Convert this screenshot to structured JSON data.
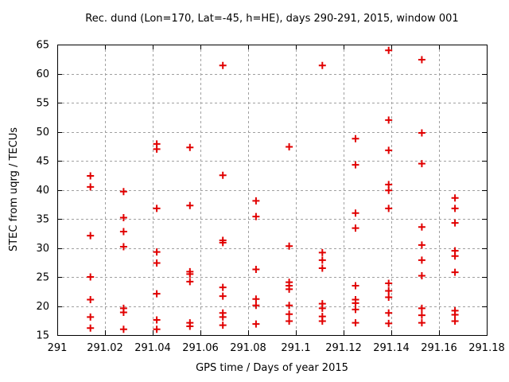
{
  "chart_data": {
    "type": "scatter",
    "title": "Rec. dund (Lon=170, Lat=-45, h=HE), days 290-291, 2015, window 001",
    "xlabel": "GPS time / Days of year 2015",
    "ylabel": "STEC from uqrg / TECUs",
    "xlim": [
      291.0,
      291.18
    ],
    "ylim": [
      15,
      65
    ],
    "grid": true,
    "legend": "none",
    "marker": {
      "shape": "plus",
      "color": "#e10000",
      "size": 9,
      "stroke_width": 2
    },
    "axis_color": "#000000",
    "grid_color": "#a0a0a0",
    "xticks": {
      "values": [
        291.0,
        291.02,
        291.04,
        291.06,
        291.08,
        291.1,
        291.12,
        291.14,
        291.16,
        291.18
      ],
      "labels": [
        "291",
        "291.02",
        "291.04",
        "291.06",
        "291.08",
        "291.1",
        "291.12",
        "291.14",
        "291.16",
        "291.18"
      ]
    },
    "yticks": {
      "values": [
        15,
        20,
        25,
        30,
        35,
        40,
        45,
        50,
        55,
        60,
        65
      ],
      "labels": [
        "15",
        "20",
        "25",
        "30",
        "35",
        "40",
        "45",
        "50",
        "55",
        "60",
        "65"
      ]
    },
    "series": [
      {
        "name": "STEC",
        "points": [
          [
            291.0139,
            42.4
          ],
          [
            291.0139,
            40.5
          ],
          [
            291.0139,
            32.1
          ],
          [
            291.0139,
            25.0
          ],
          [
            291.0139,
            21.1
          ],
          [
            291.0139,
            18.1
          ],
          [
            291.0139,
            16.2
          ],
          [
            291.0278,
            39.7
          ],
          [
            291.0278,
            35.2
          ],
          [
            291.0278,
            32.8
          ],
          [
            291.0278,
            30.2
          ],
          [
            291.0278,
            19.6
          ],
          [
            291.0278,
            18.9
          ],
          [
            291.0278,
            16.0
          ],
          [
            291.0417,
            47.9
          ],
          [
            291.0417,
            47.0
          ],
          [
            291.0417,
            36.8
          ],
          [
            291.0417,
            29.3
          ],
          [
            291.0417,
            27.4
          ],
          [
            291.0417,
            22.1
          ],
          [
            291.0417,
            17.6
          ],
          [
            291.0417,
            16.0
          ],
          [
            291.0556,
            47.3
          ],
          [
            291.0556,
            37.3
          ],
          [
            291.0556,
            25.9
          ],
          [
            291.0556,
            25.5
          ],
          [
            291.0556,
            24.2
          ],
          [
            291.0556,
            17.1
          ],
          [
            291.0556,
            16.5
          ],
          [
            291.0694,
            61.4
          ],
          [
            291.0694,
            42.5
          ],
          [
            291.0694,
            31.3
          ],
          [
            291.0694,
            30.9
          ],
          [
            291.0694,
            23.2
          ],
          [
            291.0694,
            21.7
          ],
          [
            291.0694,
            18.8
          ],
          [
            291.0694,
            18.1
          ],
          [
            291.0694,
            16.7
          ],
          [
            291.0833,
            38.1
          ],
          [
            291.0833,
            35.4
          ],
          [
            291.0833,
            26.3
          ],
          [
            291.0833,
            21.2
          ],
          [
            291.0833,
            20.1
          ],
          [
            291.0833,
            16.9
          ],
          [
            291.0972,
            47.4
          ],
          [
            291.0972,
            30.3
          ],
          [
            291.0972,
            24.1
          ],
          [
            291.0972,
            23.5
          ],
          [
            291.0972,
            22.9
          ],
          [
            291.0972,
            20.1
          ],
          [
            291.0972,
            18.6
          ],
          [
            291.0972,
            17.4
          ],
          [
            291.1111,
            61.4
          ],
          [
            291.1111,
            29.2
          ],
          [
            291.1111,
            27.9
          ],
          [
            291.1111,
            26.5
          ],
          [
            291.1111,
            20.4
          ],
          [
            291.1111,
            19.6
          ],
          [
            291.1111,
            18.2
          ],
          [
            291.1111,
            17.4
          ],
          [
            291.125,
            48.8
          ],
          [
            291.125,
            44.3
          ],
          [
            291.125,
            36.0
          ],
          [
            291.125,
            33.4
          ],
          [
            291.125,
            23.5
          ],
          [
            291.125,
            21.1
          ],
          [
            291.125,
            20.5
          ],
          [
            291.125,
            19.4
          ],
          [
            291.125,
            17.1
          ],
          [
            291.1389,
            64.0
          ],
          [
            291.1389,
            52.0
          ],
          [
            291.1389,
            46.8
          ],
          [
            291.1389,
            40.9
          ],
          [
            291.1389,
            39.9
          ],
          [
            291.1389,
            36.8
          ],
          [
            291.1389,
            23.9
          ],
          [
            291.1389,
            22.6
          ],
          [
            291.1389,
            21.5
          ],
          [
            291.1389,
            18.8
          ],
          [
            291.1389,
            17.0
          ],
          [
            291.1528,
            62.4
          ],
          [
            291.1528,
            49.8
          ],
          [
            291.1528,
            44.5
          ],
          [
            291.1528,
            33.6
          ],
          [
            291.1528,
            30.5
          ],
          [
            291.1528,
            27.9
          ],
          [
            291.1528,
            25.2
          ],
          [
            291.1528,
            19.6
          ],
          [
            291.1528,
            18.4
          ],
          [
            291.1528,
            17.1
          ],
          [
            291.1667,
            38.6
          ],
          [
            291.1667,
            36.8
          ],
          [
            291.1667,
            34.3
          ],
          [
            291.1667,
            29.5
          ],
          [
            291.1667,
            28.6
          ],
          [
            291.1667,
            25.8
          ],
          [
            291.1667,
            19.2
          ],
          [
            291.1667,
            18.5
          ],
          [
            291.1667,
            17.4
          ]
        ]
      }
    ]
  }
}
